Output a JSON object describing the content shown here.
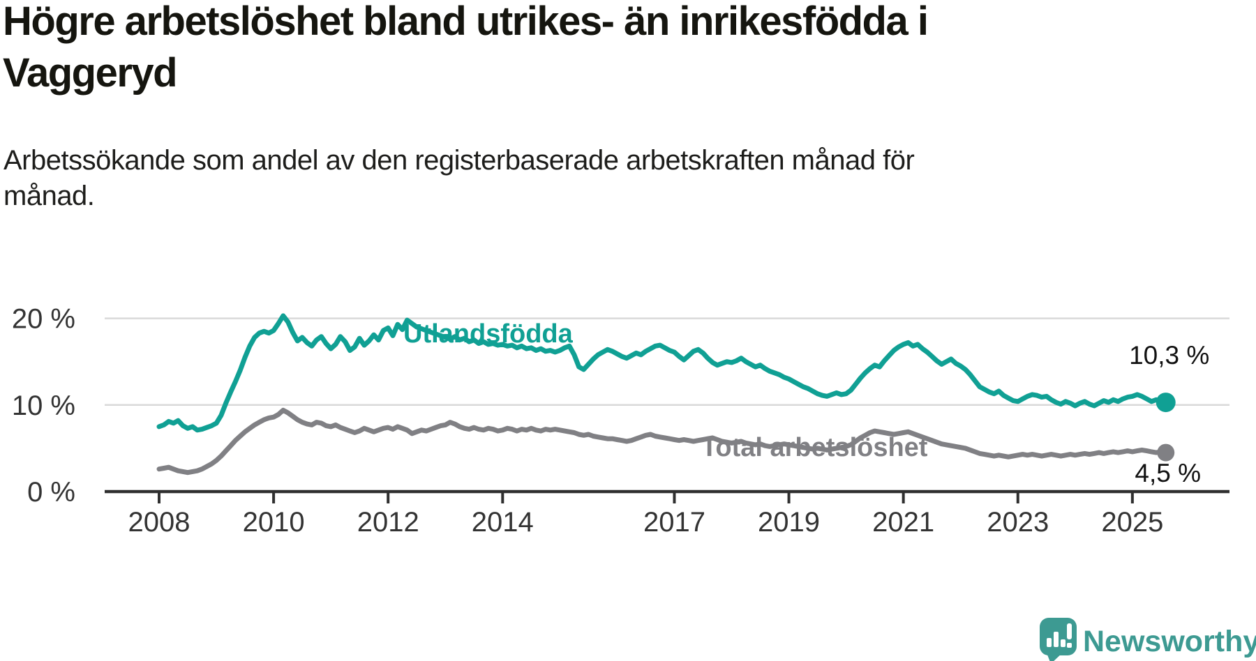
{
  "header": {
    "title": "Högre arbetslöshet bland utrikes- än inrikesfödda i\nVaggeryd",
    "subtitle": "Arbetssökande som andel av den registerbaserade arbetskraften månad för\nmånad."
  },
  "chart_data": {
    "type": "line",
    "title": "Högre arbetslöshet bland utrikes- än inrikesfödda i Vaggeryd",
    "subtitle": "Arbetssökande som andel av den registerbaserade arbetskraften månad för månad.",
    "x": {
      "start_year": 2008,
      "frequency": "monthly",
      "end_label_period": "2025",
      "tick_years": [
        2008,
        2010,
        2012,
        2014,
        2017,
        2019,
        2021,
        2023,
        2025
      ]
    },
    "y": {
      "range": [
        0,
        25.5
      ],
      "grid": "horizontal",
      "ticks": [
        {
          "value": 0,
          "label": "0 %"
        },
        {
          "value": 10,
          "label": "10 %"
        },
        {
          "value": 20,
          "label": "20 %"
        }
      ]
    },
    "series": [
      {
        "name": "Utlandsfödda",
        "color": "#10a094",
        "end_value": 10.3,
        "end_label": "10,3 %",
        "values": [
          7.5,
          7.7,
          8.1,
          7.9,
          8.2,
          7.6,
          7.3,
          7.5,
          7.1,
          7.2,
          7.4,
          7.6,
          7.9,
          8.8,
          10.2,
          11.5,
          12.7,
          14.0,
          15.5,
          16.8,
          17.8,
          18.3,
          18.5,
          18.3,
          18.6,
          19.4,
          20.3,
          19.6,
          18.4,
          17.4,
          17.8,
          17.2,
          16.8,
          17.5,
          17.9,
          17.1,
          16.5,
          17.0,
          17.9,
          17.3,
          16.3,
          16.7,
          17.7,
          16.9,
          17.4,
          18.1,
          17.5,
          18.6,
          18.9,
          18.0,
          19.3,
          18.7,
          19.8,
          19.4,
          19.0,
          18.8,
          18.6,
          18.4,
          18.2,
          18.0,
          17.8,
          17.6,
          17.9,
          17.5,
          17.7,
          17.3,
          17.5,
          17.1,
          17.3,
          17.0,
          17.1,
          16.9,
          17.0,
          16.8,
          16.9,
          16.6,
          16.8,
          16.5,
          16.6,
          16.3,
          16.5,
          16.2,
          16.3,
          16.1,
          16.3,
          16.6,
          16.8,
          15.8,
          14.4,
          14.1,
          14.7,
          15.3,
          15.8,
          16.1,
          16.4,
          16.2,
          15.9,
          15.6,
          15.4,
          15.7,
          16.0,
          15.8,
          16.2,
          16.5,
          16.8,
          16.9,
          16.6,
          16.3,
          16.1,
          15.6,
          15.2,
          15.7,
          16.2,
          16.4,
          16.0,
          15.4,
          14.9,
          14.6,
          14.8,
          15.0,
          14.9,
          15.1,
          15.4,
          15.0,
          14.7,
          14.4,
          14.6,
          14.2,
          13.9,
          13.7,
          13.5,
          13.2,
          13.0,
          12.7,
          12.4,
          12.1,
          11.9,
          11.6,
          11.3,
          11.1,
          11.0,
          11.2,
          11.4,
          11.2,
          11.3,
          11.7,
          12.4,
          13.1,
          13.7,
          14.2,
          14.6,
          14.4,
          15.1,
          15.7,
          16.3,
          16.7,
          17.0,
          17.2,
          16.8,
          17.0,
          16.5,
          16.1,
          15.6,
          15.1,
          14.7,
          15.0,
          15.3,
          14.8,
          14.5,
          14.1,
          13.5,
          12.8,
          12.1,
          11.8,
          11.5,
          11.3,
          11.6,
          11.1,
          10.8,
          10.5,
          10.4,
          10.7,
          11.0,
          11.2,
          11.1,
          10.9,
          11.0,
          10.6,
          10.3,
          10.1,
          10.4,
          10.2,
          9.9,
          10.2,
          10.4,
          10.1,
          9.9,
          10.2,
          10.5,
          10.3,
          10.6,
          10.4,
          10.7,
          10.9,
          11.0,
          11.2,
          11.0,
          10.7,
          10.4,
          10.6,
          10.4,
          10.3
        ]
      },
      {
        "name": "Total arbetslöshet",
        "color": "#808084",
        "end_value": 4.5,
        "end_label": "4,5 %",
        "values": [
          2.6,
          2.7,
          2.8,
          2.6,
          2.4,
          2.3,
          2.2,
          2.3,
          2.4,
          2.6,
          2.9,
          3.2,
          3.6,
          4.1,
          4.7,
          5.3,
          5.9,
          6.4,
          6.9,
          7.3,
          7.7,
          8.0,
          8.3,
          8.5,
          8.6,
          8.9,
          9.4,
          9.1,
          8.7,
          8.3,
          8.0,
          7.8,
          7.7,
          8.0,
          7.9,
          7.6,
          7.5,
          7.7,
          7.4,
          7.2,
          7.0,
          6.8,
          7.0,
          7.3,
          7.1,
          6.9,
          7.1,
          7.3,
          7.4,
          7.2,
          7.5,
          7.3,
          7.1,
          6.7,
          6.9,
          7.1,
          7.0,
          7.2,
          7.4,
          7.6,
          7.7,
          8.0,
          7.8,
          7.5,
          7.3,
          7.2,
          7.4,
          7.2,
          7.1,
          7.3,
          7.2,
          7.0,
          7.1,
          7.3,
          7.2,
          7.0,
          7.2,
          7.1,
          7.3,
          7.1,
          7.0,
          7.2,
          7.1,
          7.2,
          7.1,
          7.0,
          6.9,
          6.8,
          6.6,
          6.5,
          6.6,
          6.4,
          6.3,
          6.2,
          6.1,
          6.1,
          6.0,
          5.9,
          5.8,
          5.9,
          6.1,
          6.3,
          6.5,
          6.6,
          6.4,
          6.3,
          6.2,
          6.1,
          6.0,
          5.9,
          6.0,
          5.9,
          5.8,
          5.9,
          6.0,
          6.1,
          6.2,
          6.0,
          5.8,
          5.7,
          5.6,
          5.7,
          5.8,
          5.6,
          5.5,
          5.4,
          5.5,
          5.3,
          5.2,
          5.3,
          5.4,
          5.5,
          5.4,
          5.3,
          5.2,
          5.1,
          5.0,
          4.9,
          5.0,
          4.9,
          4.8,
          4.9,
          5.0,
          5.1,
          5.2,
          5.4,
          5.8,
          6.2,
          6.5,
          6.8,
          7.0,
          6.9,
          6.8,
          6.7,
          6.6,
          6.7,
          6.8,
          6.9,
          6.7,
          6.5,
          6.3,
          6.1,
          5.9,
          5.7,
          5.5,
          5.4,
          5.3,
          5.2,
          5.1,
          5.0,
          4.8,
          4.6,
          4.4,
          4.3,
          4.2,
          4.1,
          4.2,
          4.1,
          4.0,
          4.1,
          4.2,
          4.3,
          4.2,
          4.3,
          4.2,
          4.1,
          4.2,
          4.3,
          4.2,
          4.1,
          4.2,
          4.3,
          4.2,
          4.3,
          4.4,
          4.3,
          4.4,
          4.5,
          4.4,
          4.5,
          4.6,
          4.5,
          4.6,
          4.7,
          4.6,
          4.7,
          4.8,
          4.7,
          4.6,
          4.5,
          4.6,
          4.5
        ]
      }
    ]
  },
  "footer": {
    "brand": "Newsworthy",
    "brand_color": "#3d9a92",
    "logo_icon": "speech-bubble-bar-chart-icon"
  }
}
